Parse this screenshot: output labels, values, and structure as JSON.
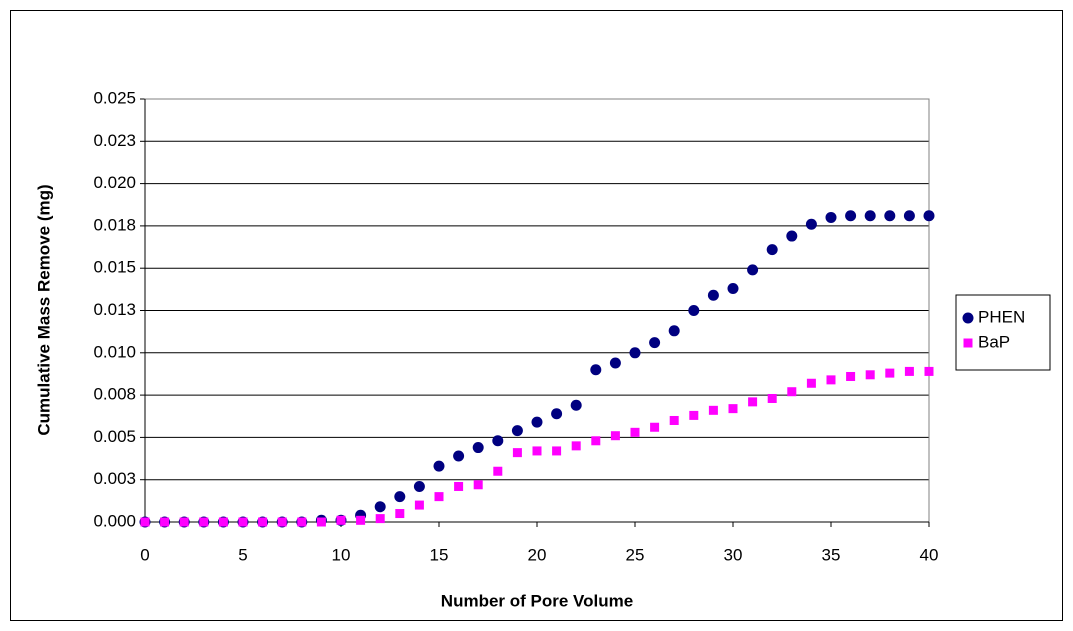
{
  "chart_data": {
    "type": "scatter",
    "x_label": "Number of Pore Volume",
    "y_label": "Cumulative Mass Remove (mg)",
    "xlim": [
      0,
      40
    ],
    "xticks": [
      0,
      5,
      10,
      15,
      20,
      25,
      30,
      35,
      40
    ],
    "ylim": [
      0,
      0.025
    ],
    "yticks": [
      {
        "value": 0,
        "label": "0.000"
      },
      {
        "value": 0.0025,
        "label": "0.003"
      },
      {
        "value": 0.005,
        "label": "0.005"
      },
      {
        "value": 0.0075,
        "label": "0.008"
      },
      {
        "value": 0.01,
        "label": "0.010"
      },
      {
        "value": 0.0125,
        "label": "0.013"
      },
      {
        "value": 0.015,
        "label": "0.015"
      },
      {
        "value": 0.0175,
        "label": "0.018"
      },
      {
        "value": 0.02,
        "label": "0.020"
      },
      {
        "value": 0.0225,
        "label": "0.023"
      },
      {
        "value": 0.025,
        "label": "0.025"
      }
    ],
    "grid": true,
    "legend": "right",
    "x": [
      0,
      1,
      2,
      3,
      4,
      5,
      6,
      7,
      8,
      9,
      10,
      11,
      12,
      13,
      14,
      15,
      16,
      17,
      18,
      19,
      20,
      21,
      22,
      23,
      24,
      25,
      26,
      27,
      28,
      29,
      30,
      31,
      32,
      33,
      34,
      35,
      36,
      37,
      38,
      39,
      40
    ],
    "series": [
      {
        "name": "PHEN",
        "color": "#000080",
        "marker": "circle",
        "values": [
          0,
          0,
          0,
          0,
          0,
          0,
          0,
          0,
          0,
          0.0001,
          0.0001,
          0.0004,
          0.0009,
          0.0015,
          0.0021,
          0.0033,
          0.0039,
          0.0044,
          0.0048,
          0.0054,
          0.0059,
          0.0064,
          0.0069,
          0.009,
          0.0094,
          0.01,
          0.0106,
          0.0113,
          0.0125,
          0.0134,
          0.0138,
          0.0149,
          0.0161,
          0.0169,
          0.0176,
          0.018,
          0.0181,
          0.0181,
          0.0181,
          0.0181,
          0.0181
        ]
      },
      {
        "name": "BaP",
        "color": "#ff00ff",
        "marker": "square",
        "values": [
          0,
          0,
          0,
          0,
          0,
          0,
          0,
          0,
          0,
          0,
          0.0001,
          0.0001,
          0.0002,
          0.0005,
          0.001,
          0.0015,
          0.0021,
          0.0022,
          0.003,
          0.0041,
          0.0042,
          0.0042,
          0.0045,
          0.0048,
          0.0051,
          0.0053,
          0.0056,
          0.006,
          0.0063,
          0.0066,
          0.0067,
          0.0071,
          0.0073,
          0.0077,
          0.0082,
          0.0084,
          0.0086,
          0.0087,
          0.0088,
          0.0089,
          0.0089
        ]
      }
    ]
  }
}
